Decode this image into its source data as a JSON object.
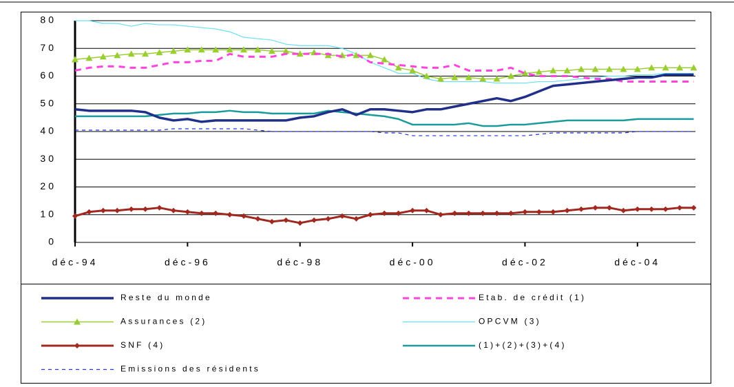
{
  "chart_data": {
    "type": "line",
    "categories": [
      "déc-94",
      null,
      null,
      null,
      null,
      null,
      null,
      null,
      "déc-96",
      null,
      null,
      null,
      null,
      null,
      null,
      null,
      "déc-98",
      null,
      null,
      null,
      null,
      null,
      null,
      null,
      "déc-00",
      null,
      null,
      null,
      null,
      null,
      null,
      null,
      "déc-02",
      null,
      null,
      null,
      null,
      null,
      null,
      null,
      "déc-04",
      null,
      null,
      null,
      null
    ],
    "ylim": [
      0,
      80
    ],
    "yticks": [
      0,
      10,
      20,
      30,
      40,
      50,
      60,
      70,
      80
    ],
    "grid": true,
    "legend": "bottom",
    "series": [
      {
        "name": "Reste du monde",
        "color": "#1f2f8a",
        "width": 3.5,
        "dash": "none",
        "marker": "none",
        "values": [
          48,
          47.5,
          47.5,
          47.5,
          47.5,
          47,
          45,
          44,
          44.5,
          43.5,
          44,
          44,
          44,
          44,
          44,
          44,
          45,
          45.5,
          47,
          48,
          46,
          48,
          48,
          47.5,
          47,
          48,
          48,
          49,
          50,
          51,
          52,
          51,
          52.5,
          54.5,
          56.5,
          57,
          57.5,
          58,
          58.5,
          59,
          59.5,
          59.5,
          60.5,
          60.5,
          60.5
        ]
      },
      {
        "name": "Etab. de crédit (1)",
        "color": "#ff44dd",
        "width": 3,
        "dash": "9,7",
        "marker": "none",
        "values": [
          62,
          63,
          63.5,
          63.5,
          63,
          63,
          64,
          65,
          65,
          65.5,
          65.5,
          68,
          67,
          67,
          67,
          68,
          68,
          68,
          68,
          67,
          68,
          65,
          64.5,
          64,
          63.5,
          63,
          63,
          64,
          62,
          62,
          62,
          63,
          61,
          60,
          60,
          60,
          59.5,
          59,
          59,
          58,
          58,
          58,
          58,
          58,
          58
        ]
      },
      {
        "name": "Assurances (2)",
        "color": "#9acd32",
        "width": 1.5,
        "dash": "none",
        "marker": "triangle",
        "values": [
          66,
          66.5,
          67,
          67.5,
          68,
          68,
          68.5,
          69,
          69.5,
          69.5,
          69.5,
          69.5,
          69.5,
          69.5,
          69,
          69,
          68,
          68.5,
          67.5,
          67.5,
          67.5,
          67.5,
          66,
          63,
          62,
          60,
          59,
          59.5,
          59.5,
          59,
          59,
          60,
          61,
          61.5,
          62,
          62,
          62.5,
          62.5,
          62.5,
          62.5,
          62.5,
          63,
          63,
          63,
          63
        ]
      },
      {
        "name": "OPCVM (3)",
        "color": "#66e0f0",
        "width": 1.2,
        "dash": "none",
        "marker": "none",
        "values": [
          80,
          80,
          79,
          79,
          78,
          79,
          78.5,
          78.5,
          78,
          77.5,
          77,
          76,
          74,
          73.5,
          73,
          71.5,
          71,
          71,
          71,
          70,
          68,
          65,
          63,
          61,
          61,
          59,
          58,
          58,
          58,
          58,
          57.5,
          57.5,
          57.5,
          58,
          58,
          58.5,
          59,
          59.5,
          60,
          60,
          60.5,
          60.5,
          61,
          61,
          61
        ]
      },
      {
        "name": "SNF (4)",
        "color": "#a0281e",
        "width": 3,
        "dash": "none",
        "marker": "diamond",
        "values": [
          9.5,
          11,
          11.5,
          11.5,
          12,
          12,
          12.5,
          11.5,
          11,
          10.5,
          10.5,
          10,
          9.5,
          8.5,
          7.5,
          8,
          7,
          8,
          8.5,
          9.5,
          8.5,
          10,
          10.5,
          10.5,
          11.5,
          11.5,
          10,
          10.5,
          10.5,
          10.5,
          10.5,
          10.5,
          11,
          11,
          11,
          11.5,
          12,
          12.5,
          12.5,
          11.5,
          12,
          12,
          12,
          12.5,
          12.5
        ]
      },
      {
        "name": "(1)+(2)+(3)+(4)",
        "color": "#1a9a9a",
        "width": 2.5,
        "dash": "none",
        "marker": "none",
        "values": [
          45.5,
          45.5,
          45.5,
          45.5,
          45.5,
          45.5,
          46,
          46.5,
          46.5,
          47,
          47,
          47.5,
          47,
          47,
          46.5,
          46.5,
          46.5,
          46.5,
          47.5,
          47,
          46.5,
          46,
          45.5,
          44.5,
          42.5,
          42.5,
          42.5,
          42.5,
          43,
          42,
          42,
          42.5,
          42.5,
          43,
          43.5,
          44,
          44,
          44,
          44,
          44,
          44.5,
          44.5,
          44.5,
          44.5,
          44.5
        ]
      },
      {
        "name": "Emissions des résidents",
        "color": "#2233dd",
        "width": 1.2,
        "dash": "5,5",
        "marker": "none",
        "values": [
          40.5,
          40.5,
          40.5,
          40.5,
          40.5,
          40.5,
          40.5,
          41,
          41,
          41,
          41,
          41,
          41,
          40.5,
          40,
          40,
          40,
          40,
          40,
          40,
          40,
          40,
          39.5,
          39.5,
          38.5,
          38.5,
          38.5,
          38.5,
          38.5,
          38.5,
          38.5,
          38.5,
          38.5,
          39,
          39.5,
          39.5,
          39.5,
          39.5,
          39.5,
          39.5,
          40,
          40,
          40,
          40,
          40
        ]
      }
    ]
  }
}
